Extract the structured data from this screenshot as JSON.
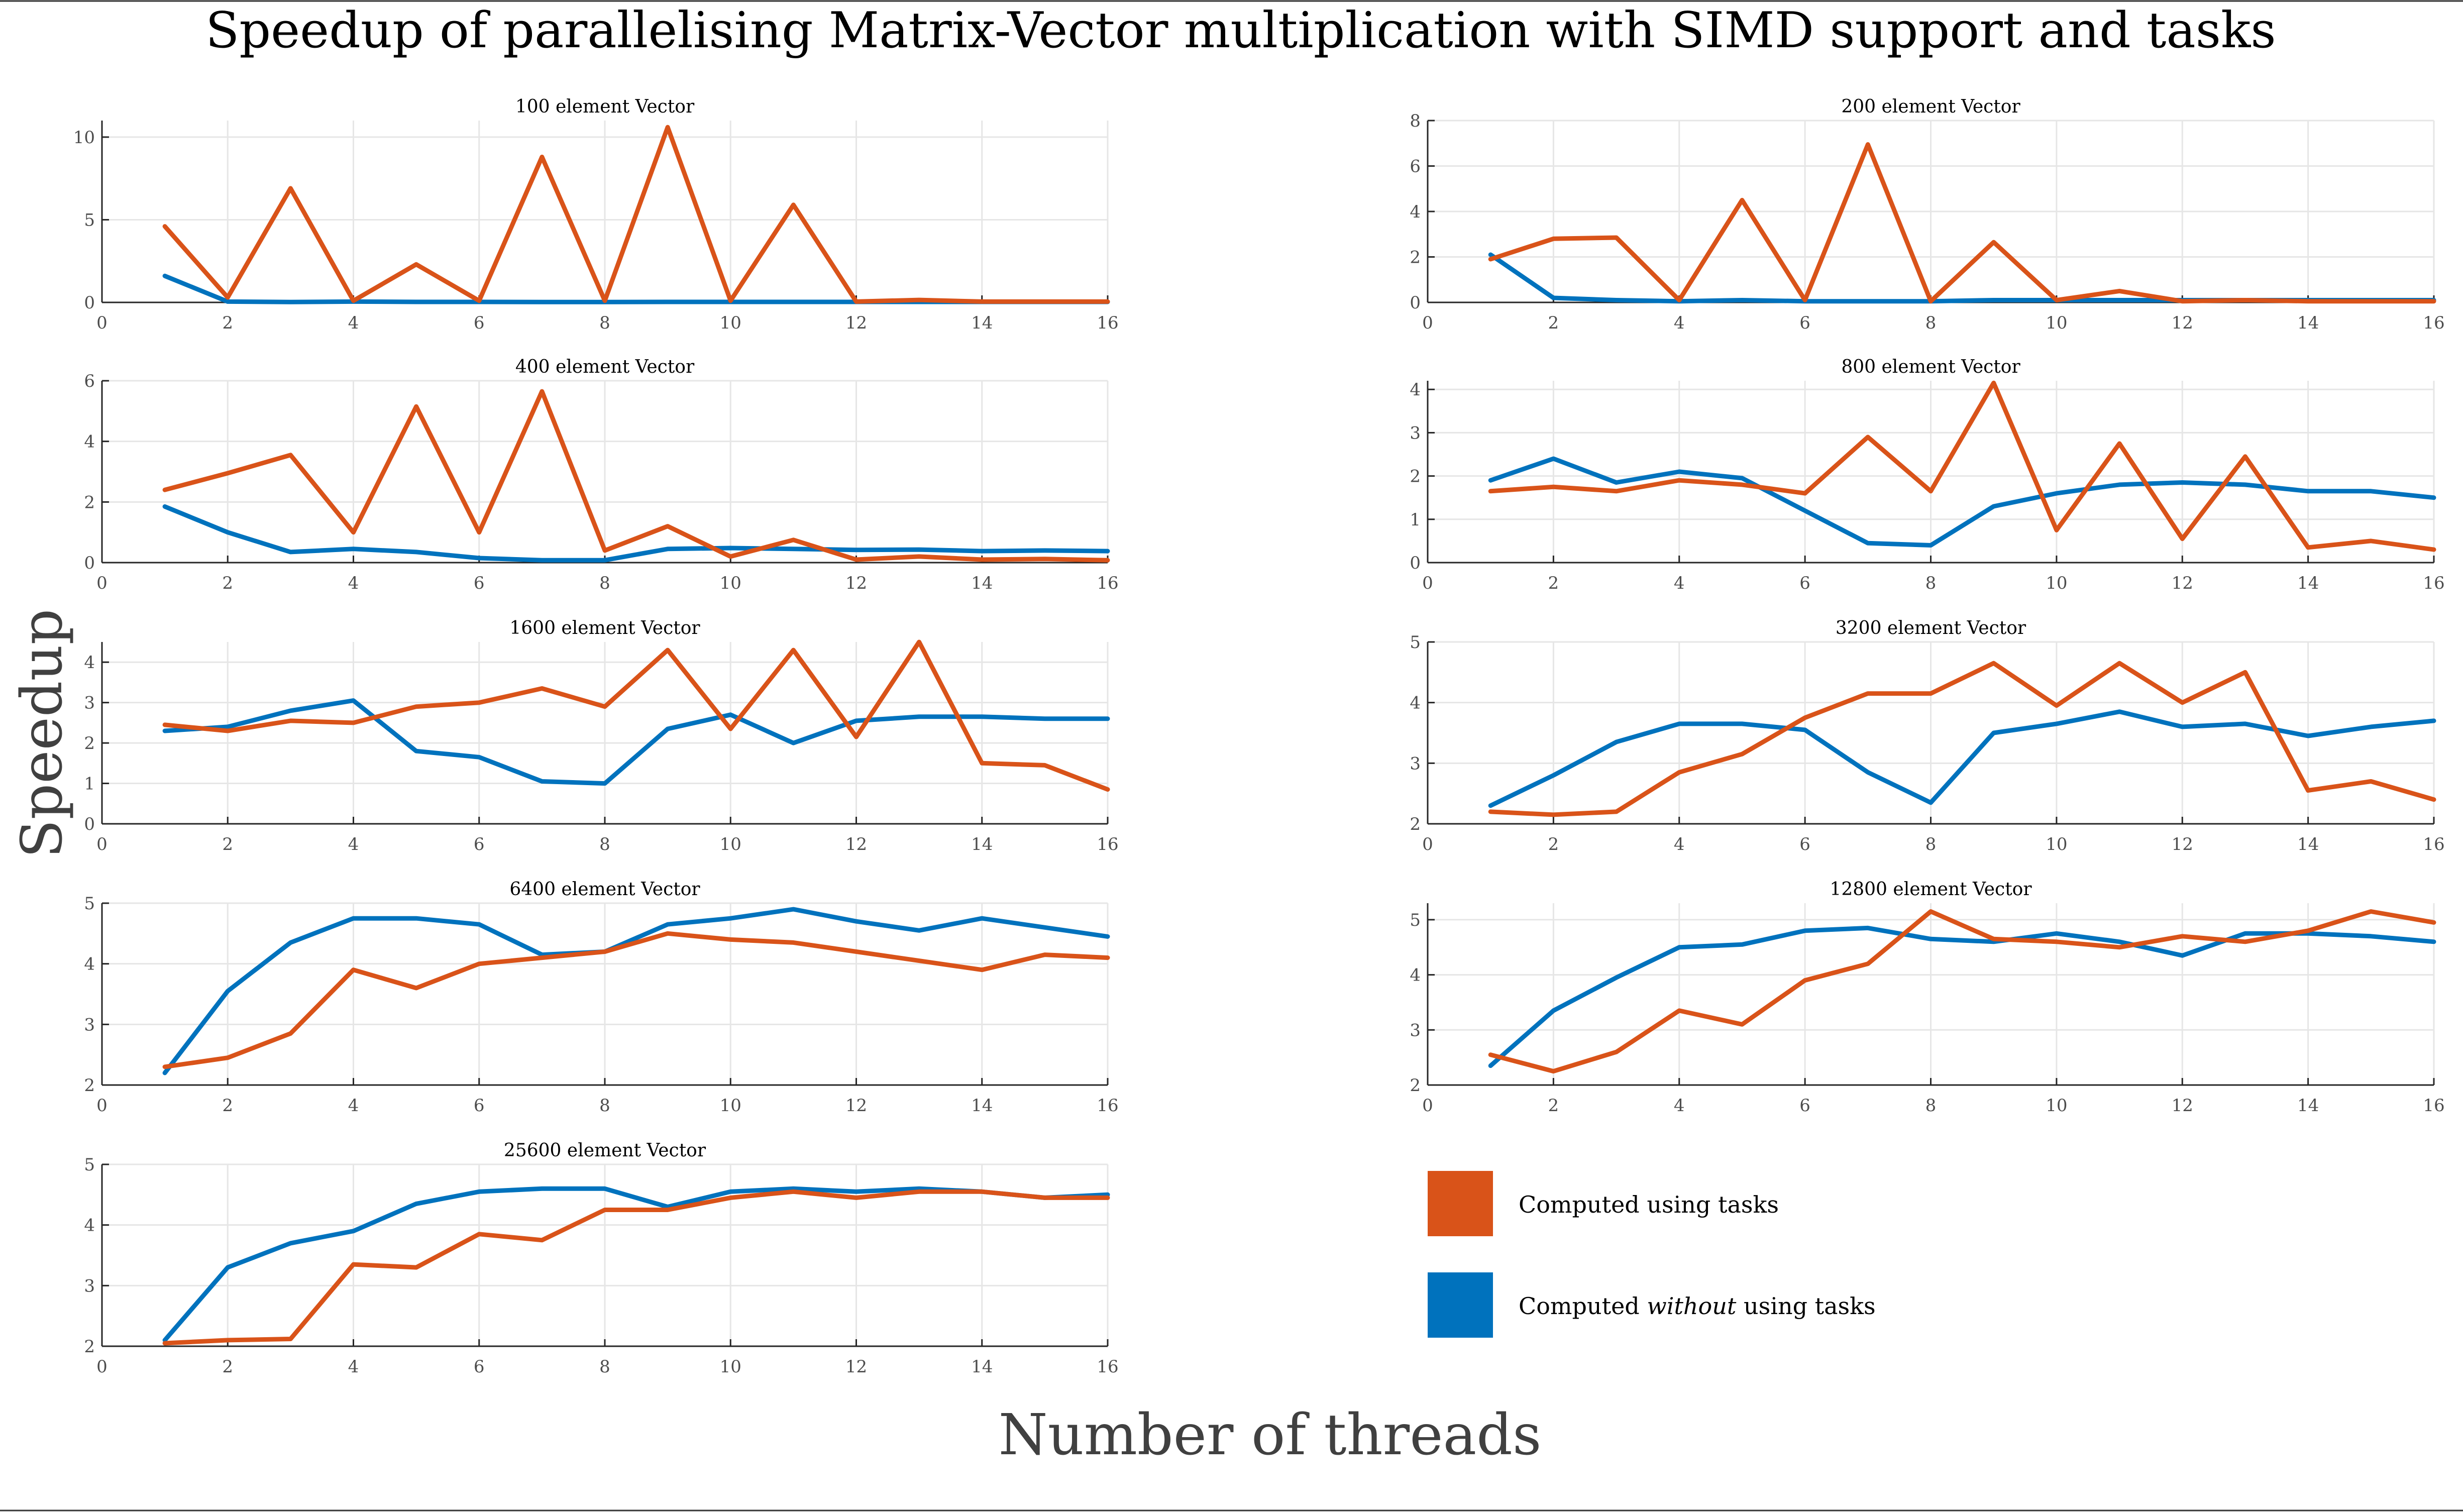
{
  "title": "Speedup of parallelising Matrix-Vector multiplication with SIMD support and tasks",
  "xlabel": "Number of threads",
  "ylabel": "Speedup",
  "colors": {
    "tasks": "#D95319",
    "notasks": "#0072BD",
    "grid": "#e6e6e6",
    "axis": "#262626"
  },
  "legend": {
    "tasks_label": "Computed using tasks",
    "notasks_prefix": "Computed ",
    "notasks_emph": "without",
    "notasks_suffix": " using tasks"
  },
  "chart_data": [
    {
      "type": "line",
      "title": "100 element Vector",
      "x": [
        1,
        2,
        3,
        4,
        5,
        6,
        7,
        8,
        9,
        10,
        11,
        12,
        13,
        14,
        15,
        16
      ],
      "xlim": [
        0,
        16
      ],
      "xticks": [
        0,
        2,
        4,
        6,
        8,
        10,
        12,
        14,
        16
      ],
      "ylim": [
        0,
        11
      ],
      "yticks": [
        0,
        5,
        10
      ],
      "series": [
        {
          "key": "tasks",
          "values": [
            4.6,
            0.3,
            6.9,
            0.1,
            2.3,
            0.1,
            8.8,
            0.1,
            10.6,
            0.1,
            5.9,
            0.05,
            0.15,
            0.05,
            0.05,
            0.05
          ]
        },
        {
          "key": "notasks",
          "values": [
            1.6,
            0.05,
            0.02,
            0.05,
            0.03,
            0.03,
            0.02,
            0.02,
            0.03,
            0.03,
            0.03,
            0.03,
            0.03,
            0.03,
            0.03,
            0.03
          ]
        }
      ]
    },
    {
      "type": "line",
      "title": "200 element Vector",
      "x": [
        1,
        2,
        3,
        4,
        5,
        6,
        7,
        8,
        9,
        10,
        11,
        12,
        13,
        14,
        15,
        16
      ],
      "xlim": [
        0,
        16
      ],
      "xticks": [
        0,
        2,
        4,
        6,
        8,
        10,
        12,
        14,
        16
      ],
      "ylim": [
        0,
        8
      ],
      "yticks": [
        0,
        2,
        4,
        6,
        8
      ],
      "series": [
        {
          "key": "tasks",
          "values": [
            1.9,
            2.8,
            2.85,
            0.1,
            4.5,
            0.1,
            6.95,
            0.05,
            2.65,
            0.1,
            0.5,
            0.05,
            0.1,
            0.05,
            0.05,
            0.05
          ]
        },
        {
          "key": "notasks",
          "values": [
            2.1,
            0.2,
            0.1,
            0.05,
            0.1,
            0.05,
            0.05,
            0.05,
            0.1,
            0.1,
            0.1,
            0.1,
            0.1,
            0.1,
            0.1,
            0.1
          ]
        }
      ]
    },
    {
      "type": "line",
      "title": "400 element Vector",
      "x": [
        1,
        2,
        3,
        4,
        5,
        6,
        7,
        8,
        9,
        10,
        11,
        12,
        13,
        14,
        15,
        16
      ],
      "xlim": [
        0,
        16
      ],
      "xticks": [
        0,
        2,
        4,
        6,
        8,
        10,
        12,
        14,
        16
      ],
      "ylim": [
        0,
        6
      ],
      "yticks": [
        0,
        2,
        4,
        6
      ],
      "series": [
        {
          "key": "tasks",
          "values": [
            2.4,
            2.95,
            3.55,
            1.0,
            5.15,
            1.0,
            5.65,
            0.4,
            1.2,
            0.2,
            0.75,
            0.1,
            0.2,
            0.1,
            0.12,
            0.08
          ]
        },
        {
          "key": "notasks",
          "values": [
            1.85,
            1.0,
            0.35,
            0.45,
            0.35,
            0.15,
            0.08,
            0.08,
            0.45,
            0.48,
            0.45,
            0.42,
            0.43,
            0.38,
            0.4,
            0.38
          ]
        }
      ]
    },
    {
      "type": "line",
      "title": "800 element Vector",
      "x": [
        1,
        2,
        3,
        4,
        5,
        6,
        7,
        8,
        9,
        10,
        11,
        12,
        13,
        14,
        15,
        16
      ],
      "xlim": [
        0,
        16
      ],
      "xticks": [
        0,
        2,
        4,
        6,
        8,
        10,
        12,
        14,
        16
      ],
      "ylim": [
        0,
        4.2
      ],
      "yticks": [
        0,
        1,
        2,
        3,
        4
      ],
      "series": [
        {
          "key": "tasks",
          "values": [
            1.65,
            1.75,
            1.65,
            1.9,
            1.8,
            1.6,
            2.9,
            1.65,
            4.15,
            0.75,
            2.75,
            0.55,
            2.45,
            0.35,
            0.5,
            0.3
          ]
        },
        {
          "key": "notasks",
          "values": [
            1.9,
            2.4,
            1.85,
            2.1,
            1.95,
            1.2,
            0.45,
            0.4,
            1.3,
            1.6,
            1.8,
            1.85,
            1.8,
            1.65,
            1.65,
            1.5
          ]
        }
      ]
    },
    {
      "type": "line",
      "title": "1600 element Vector",
      "x": [
        1,
        2,
        3,
        4,
        5,
        6,
        7,
        8,
        9,
        10,
        11,
        12,
        13,
        14,
        15,
        16
      ],
      "xlim": [
        0,
        16
      ],
      "xticks": [
        0,
        2,
        4,
        6,
        8,
        10,
        12,
        14,
        16
      ],
      "ylim": [
        0,
        4.5
      ],
      "yticks": [
        0,
        1,
        2,
        3,
        4
      ],
      "series": [
        {
          "key": "tasks",
          "values": [
            2.45,
            2.3,
            2.55,
            2.5,
            2.9,
            3.0,
            3.35,
            2.9,
            4.3,
            2.35,
            4.3,
            2.15,
            4.5,
            1.5,
            1.45,
            0.85
          ]
        },
        {
          "key": "notasks",
          "values": [
            2.3,
            2.4,
            2.8,
            3.05,
            1.8,
            1.65,
            1.05,
            1.0,
            2.35,
            2.7,
            2.0,
            2.55,
            2.65,
            2.65,
            2.6,
            2.6
          ]
        }
      ]
    },
    {
      "type": "line",
      "title": "3200 element Vector",
      "x": [
        1,
        2,
        3,
        4,
        5,
        6,
        7,
        8,
        9,
        10,
        11,
        12,
        13,
        14,
        15,
        16
      ],
      "xlim": [
        0,
        16
      ],
      "xticks": [
        0,
        2,
        4,
        6,
        8,
        10,
        12,
        14,
        16
      ],
      "ylim": [
        2,
        5
      ],
      "yticks": [
        2,
        3,
        4,
        5
      ],
      "series": [
        {
          "key": "tasks",
          "values": [
            2.2,
            2.15,
            2.2,
            2.85,
            3.15,
            3.75,
            4.15,
            4.15,
            4.65,
            3.95,
            4.65,
            4.0,
            4.5,
            2.55,
            2.7,
            2.4
          ]
        },
        {
          "key": "notasks",
          "values": [
            2.3,
            2.8,
            3.35,
            3.65,
            3.65,
            3.55,
            2.85,
            2.35,
            3.5,
            3.65,
            3.85,
            3.6,
            3.65,
            3.45,
            3.6,
            3.7
          ]
        }
      ]
    },
    {
      "type": "line",
      "title": "6400 element Vector",
      "x": [
        1,
        2,
        3,
        4,
        5,
        6,
        7,
        8,
        9,
        10,
        11,
        12,
        13,
        14,
        15,
        16
      ],
      "xlim": [
        0,
        16
      ],
      "xticks": [
        0,
        2,
        4,
        6,
        8,
        10,
        12,
        14,
        16
      ],
      "ylim": [
        2,
        5
      ],
      "yticks": [
        2,
        3,
        4,
        5
      ],
      "series": [
        {
          "key": "tasks",
          "values": [
            2.3,
            2.45,
            2.85,
            3.9,
            3.6,
            4.0,
            4.1,
            4.2,
            4.5,
            4.4,
            4.35,
            4.2,
            4.05,
            3.9,
            4.15,
            4.1
          ]
        },
        {
          "key": "notasks",
          "values": [
            2.2,
            3.55,
            4.35,
            4.75,
            4.75,
            4.65,
            4.15,
            4.2,
            4.65,
            4.75,
            4.9,
            4.7,
            4.55,
            4.75,
            4.6,
            4.45
          ]
        }
      ]
    },
    {
      "type": "line",
      "title": "12800 element Vector",
      "x": [
        1,
        2,
        3,
        4,
        5,
        6,
        7,
        8,
        9,
        10,
        11,
        12,
        13,
        14,
        15,
        16
      ],
      "xlim": [
        0,
        16
      ],
      "xticks": [
        0,
        2,
        4,
        6,
        8,
        10,
        12,
        14,
        16
      ],
      "ylim": [
        2,
        5.3
      ],
      "yticks": [
        2,
        3,
        4,
        5
      ],
      "series": [
        {
          "key": "tasks",
          "values": [
            2.55,
            2.25,
            2.6,
            3.35,
            3.1,
            3.9,
            4.2,
            5.15,
            4.65,
            4.6,
            4.5,
            4.7,
            4.6,
            4.8,
            5.15,
            4.95
          ]
        },
        {
          "key": "notasks",
          "values": [
            2.35,
            3.35,
            3.95,
            4.5,
            4.55,
            4.8,
            4.85,
            4.65,
            4.6,
            4.75,
            4.6,
            4.35,
            4.75,
            4.75,
            4.7,
            4.6
          ]
        }
      ]
    },
    {
      "type": "line",
      "title": "25600 element Vector",
      "x": [
        1,
        2,
        3,
        4,
        5,
        6,
        7,
        8,
        9,
        10,
        11,
        12,
        13,
        14,
        15,
        16
      ],
      "xlim": [
        0,
        16
      ],
      "xticks": [
        0,
        2,
        4,
        6,
        8,
        10,
        12,
        14,
        16
      ],
      "ylim": [
        2,
        5
      ],
      "yticks": [
        2,
        3,
        4,
        5
      ],
      "series": [
        {
          "key": "tasks",
          "values": [
            2.05,
            2.1,
            2.12,
            3.35,
            3.3,
            3.85,
            3.75,
            4.25,
            4.25,
            4.45,
            4.55,
            4.45,
            4.55,
            4.55,
            4.45,
            4.45
          ]
        },
        {
          "key": "notasks",
          "values": [
            2.1,
            3.3,
            3.7,
            3.9,
            4.35,
            4.55,
            4.6,
            4.6,
            4.3,
            4.55,
            4.6,
            4.55,
            4.6,
            4.55,
            4.45,
            4.5
          ]
        }
      ]
    }
  ]
}
